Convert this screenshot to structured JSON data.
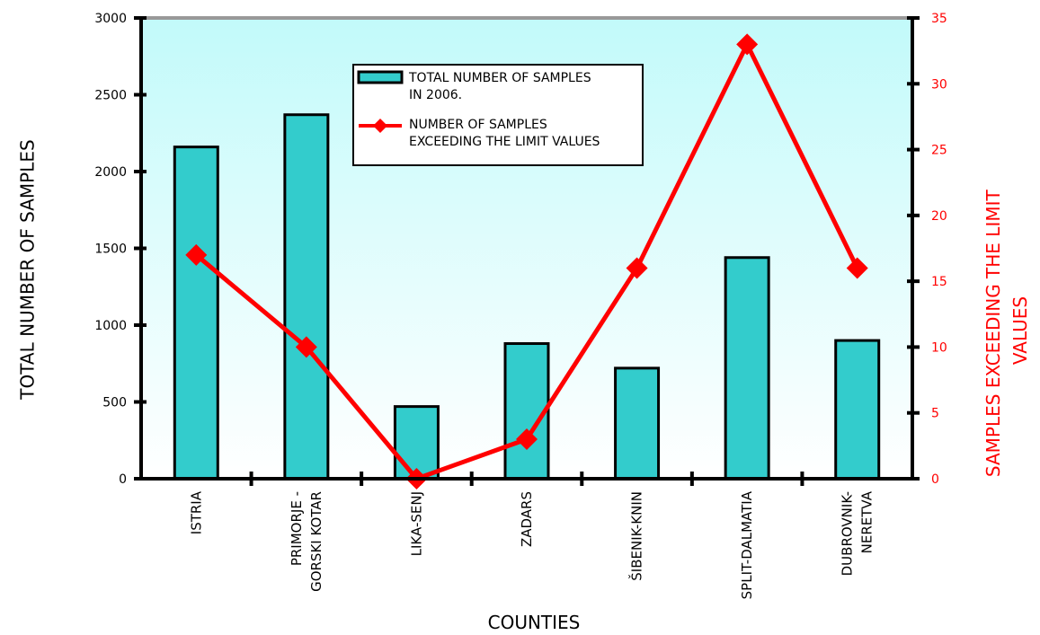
{
  "chart_data": {
    "type": "bar",
    "categories": [
      "ISTRIA",
      "PRIMORJE - GORSKI KOTAR",
      "LIKA-SENJ",
      "ZADARS",
      "ŠIBENIK-KNIN",
      "SPLIT-DALMATIA",
      "DUBROVNIK-NERETVA"
    ],
    "category_label_lines": [
      [
        "ISTRIA"
      ],
      [
        "PRIMORJE -",
        "GORSKI KOTAR"
      ],
      [
        "LIKA-SENJ"
      ],
      [
        "ZADARS"
      ],
      [
        "ŠIBENIK-KNIN"
      ],
      [
        "SPLIT-DALMATIA"
      ],
      [
        "DUBROVNIK-",
        "NERETVA"
      ]
    ],
    "series": [
      {
        "name": "TOTAL NUMBER OF SAMPLES IN 2006.",
        "legend_lines": [
          "TOTAL NUMBER OF SAMPLES",
          "IN 2006."
        ],
        "type": "bar",
        "axis": "left",
        "color": "#33CCCC",
        "values": [
          2160,
          2370,
          470,
          880,
          720,
          1440,
          900
        ]
      },
      {
        "name": "NUMBER OF SAMPLES EXCEEDING THE LIMIT VALUES",
        "legend_lines": [
          "NUMBER OF SAMPLES",
          "EXCEEDING THE LIMIT VALUES"
        ],
        "type": "line",
        "axis": "right",
        "color": "#FF0000",
        "marker": "diamond",
        "values": [
          17,
          10,
          0,
          3,
          16,
          33,
          16
        ]
      }
    ],
    "xlabel": "COUNTIES",
    "ylabel": "TOTAL NUMBER OF SAMPLES",
    "y2label_lines": [
      "SAMPLES EXCEEDING THE LIMIT",
      "VALUES"
    ],
    "ylim": [
      0,
      3000
    ],
    "y_ticks": [
      0,
      500,
      1000,
      1500,
      2000,
      2500,
      3000
    ],
    "y2lim": [
      0,
      35
    ],
    "y2_ticks": [
      0,
      5,
      10,
      15,
      20,
      25,
      30,
      35
    ],
    "legend_position": "top-center",
    "background": "gradient light cyan to white",
    "colors": {
      "plot_top": "#C2FAFA",
      "plot_bottom": "#FFFFFF",
      "axis": "#000000",
      "top_border": "#999999",
      "right_axis_text": "#FF0000"
    }
  }
}
